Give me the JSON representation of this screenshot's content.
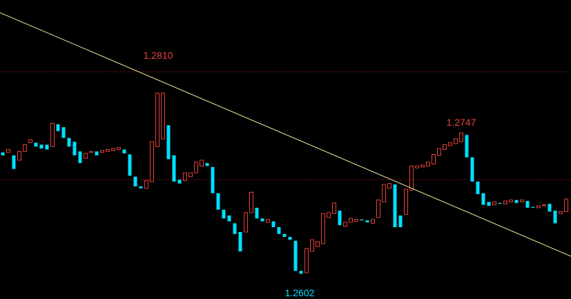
{
  "chart_data": {
    "type": "candlestick",
    "open": [
      1.2727,
      1.2727,
      1.2724,
      1.2719,
      1.2728,
      1.2737,
      1.2737,
      1.2735,
      1.2735,
      1.2733,
      1.2756,
      1.2753,
      1.2742,
      1.2738,
      1.2728,
      1.2721,
      1.2727,
      1.2728,
      1.2727,
      1.2728,
      1.2729,
      1.273,
      1.273,
      1.2725,
      1.2702,
      1.2692,
      1.269,
      1.2697,
      1.2733,
      1.2741,
      1.2755,
      1.2724,
      1.2699,
      1.2698,
      1.2702,
      1.2706,
      1.2713,
      1.2716,
      1.2712,
      1.2685,
      1.2668,
      1.2662,
      1.2654,
      1.2645,
      1.2645,
      1.2665,
      1.267,
      1.2659,
      1.2655,
      1.2656,
      1.265,
      1.2643,
      1.264,
      1.2636,
      1.2605,
      1.2603,
      1.2625,
      1.263,
      1.2633,
      1.266,
      1.2664,
      1.2667,
      1.2651,
      1.2655,
      1.2656,
      1.2658,
      1.2657,
      1.2654,
      1.266,
      1.2676,
      1.269,
      1.2694,
      1.2662,
      1.2663,
      1.2688,
      1.2711,
      1.2712,
      1.2713,
      1.2715,
      1.2724,
      1.273,
      1.2734,
      1.2736,
      1.2738,
      1.2745,
      1.2722,
      1.2697,
      1.2685,
      1.2676,
      1.2673,
      1.2675,
      1.2674,
      1.2676,
      1.2678,
      1.2676,
      1.2677,
      1.2671,
      1.267,
      1.2672,
      1.2674,
      1.2667,
      1.2664,
      1.2666
    ],
    "close": [
      1.2724,
      1.273,
      1.271,
      1.2728,
      1.2735,
      1.274,
      1.2733,
      1.2731,
      1.273,
      1.2757,
      1.2749,
      1.2742,
      1.2733,
      1.2724,
      1.2716,
      1.2726,
      1.2728,
      1.2724,
      1.2729,
      1.273,
      1.2731,
      1.2732,
      1.2726,
      1.2703,
      1.2692,
      1.269,
      1.2698,
      1.2738,
      1.2788,
      1.2788,
      1.272,
      1.2697,
      1.2695,
      1.2706,
      1.2706,
      1.2717,
      1.2719,
      1.2713,
      1.2685,
      1.2668,
      1.2659,
      1.2656,
      1.2643,
      1.2625,
      1.2665,
      1.2686,
      1.2659,
      1.2656,
      1.2658,
      1.265,
      1.2643,
      1.264,
      1.2637,
      1.2605,
      1.2602,
      1.2628,
      1.2637,
      1.2635,
      1.2664,
      1.2665,
      1.2675,
      1.2652,
      1.2655,
      1.2659,
      1.2658,
      1.2657,
      1.2655,
      1.2658,
      1.2678,
      1.2694,
      1.2695,
      1.265,
      1.265,
      1.2689,
      1.2713,
      1.2713,
      1.2714,
      1.2717,
      1.2725,
      1.2731,
      1.2735,
      1.2737,
      1.2741,
      1.2747,
      1.2722,
      1.2697,
      1.2684,
      1.2673,
      1.2672,
      1.2676,
      1.2674,
      1.2677,
      1.2678,
      1.2675,
      1.2678,
      1.267,
      1.267,
      1.2672,
      1.2673,
      1.2666,
      1.2654,
      1.2666,
      1.2679
    ],
    "up_color": "#e8413a",
    "down_color": "#00e0ff",
    "ylim": [
      1.2576,
      1.2884
    ],
    "levels": [
      1.281,
      1.2699
    ],
    "level_color": "#b02020",
    "trendline": {
      "start": 1.2871,
      "end": 1.262,
      "color": "#f0e8a0"
    },
    "annotations": [
      {
        "text": "1.2810",
        "color": "#e8413a"
      },
      {
        "text": "1.2747",
        "color": "#e8413a"
      },
      {
        "text": "1.2602",
        "color": "#00e0ff"
      }
    ]
  }
}
